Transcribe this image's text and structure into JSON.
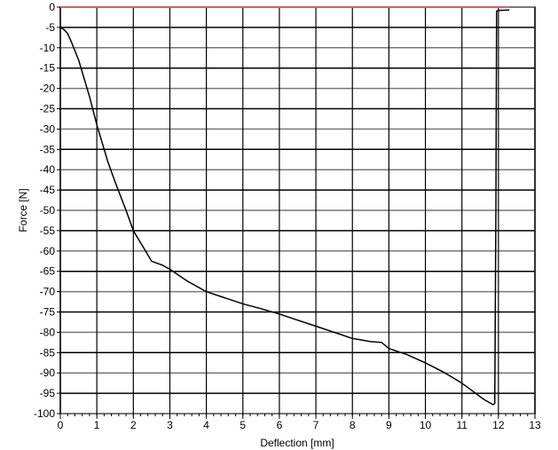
{
  "chart_data": {
    "type": "line",
    "title": "",
    "xlabel": "Deflection [mm]",
    "ylabel": "Force [N]",
    "xlim": [
      0,
      13
    ],
    "ylim": [
      -100,
      0
    ],
    "xticks": [
      0,
      1,
      2,
      3,
      4,
      5,
      6,
      7,
      8,
      9,
      10,
      11,
      12,
      13
    ],
    "yticks": [
      0,
      -5,
      -10,
      -15,
      -20,
      -25,
      -30,
      -35,
      -40,
      -45,
      -50,
      -55,
      -60,
      -65,
      -70,
      -75,
      -80,
      -85,
      -90,
      -95,
      -100
    ],
    "grid": true,
    "series": [
      {
        "color": "#000000",
        "x": [
          0,
          0.1,
          0.2,
          0.3,
          0.5,
          0.8,
          1.0,
          1.3,
          1.5,
          1.8,
          2.0,
          2.3,
          2.5,
          2.8,
          3.0,
          3.5,
          4.0,
          4.5,
          5.0,
          5.5,
          6.0,
          6.5,
          7.0,
          7.5,
          8.0,
          8.5,
          8.8,
          9.0,
          9.5,
          10.0,
          10.5,
          11.0,
          11.3,
          11.6,
          11.85,
          11.9,
          11.93,
          11.95,
          12.0,
          12.3
        ],
        "y": [
          -5,
          -5.5,
          -6.5,
          -8.5,
          -13,
          -22,
          -29,
          -38,
          -43,
          -50,
          -55,
          -59.5,
          -62.5,
          -63.5,
          -64.5,
          -67.5,
          -70,
          -71.5,
          -73,
          -74.2,
          -75.5,
          -77,
          -78.5,
          -80,
          -81.5,
          -82.3,
          -82.5,
          -84,
          -85.5,
          -87.5,
          -89.8,
          -92.5,
          -94.5,
          -96.5,
          -97.8,
          -97.5,
          -50,
          -1,
          -0.8,
          -0.7
        ]
      },
      {
        "color": "#e06060",
        "x": [
          0,
          12.3
        ],
        "y": [
          0,
          0
        ]
      }
    ]
  }
}
